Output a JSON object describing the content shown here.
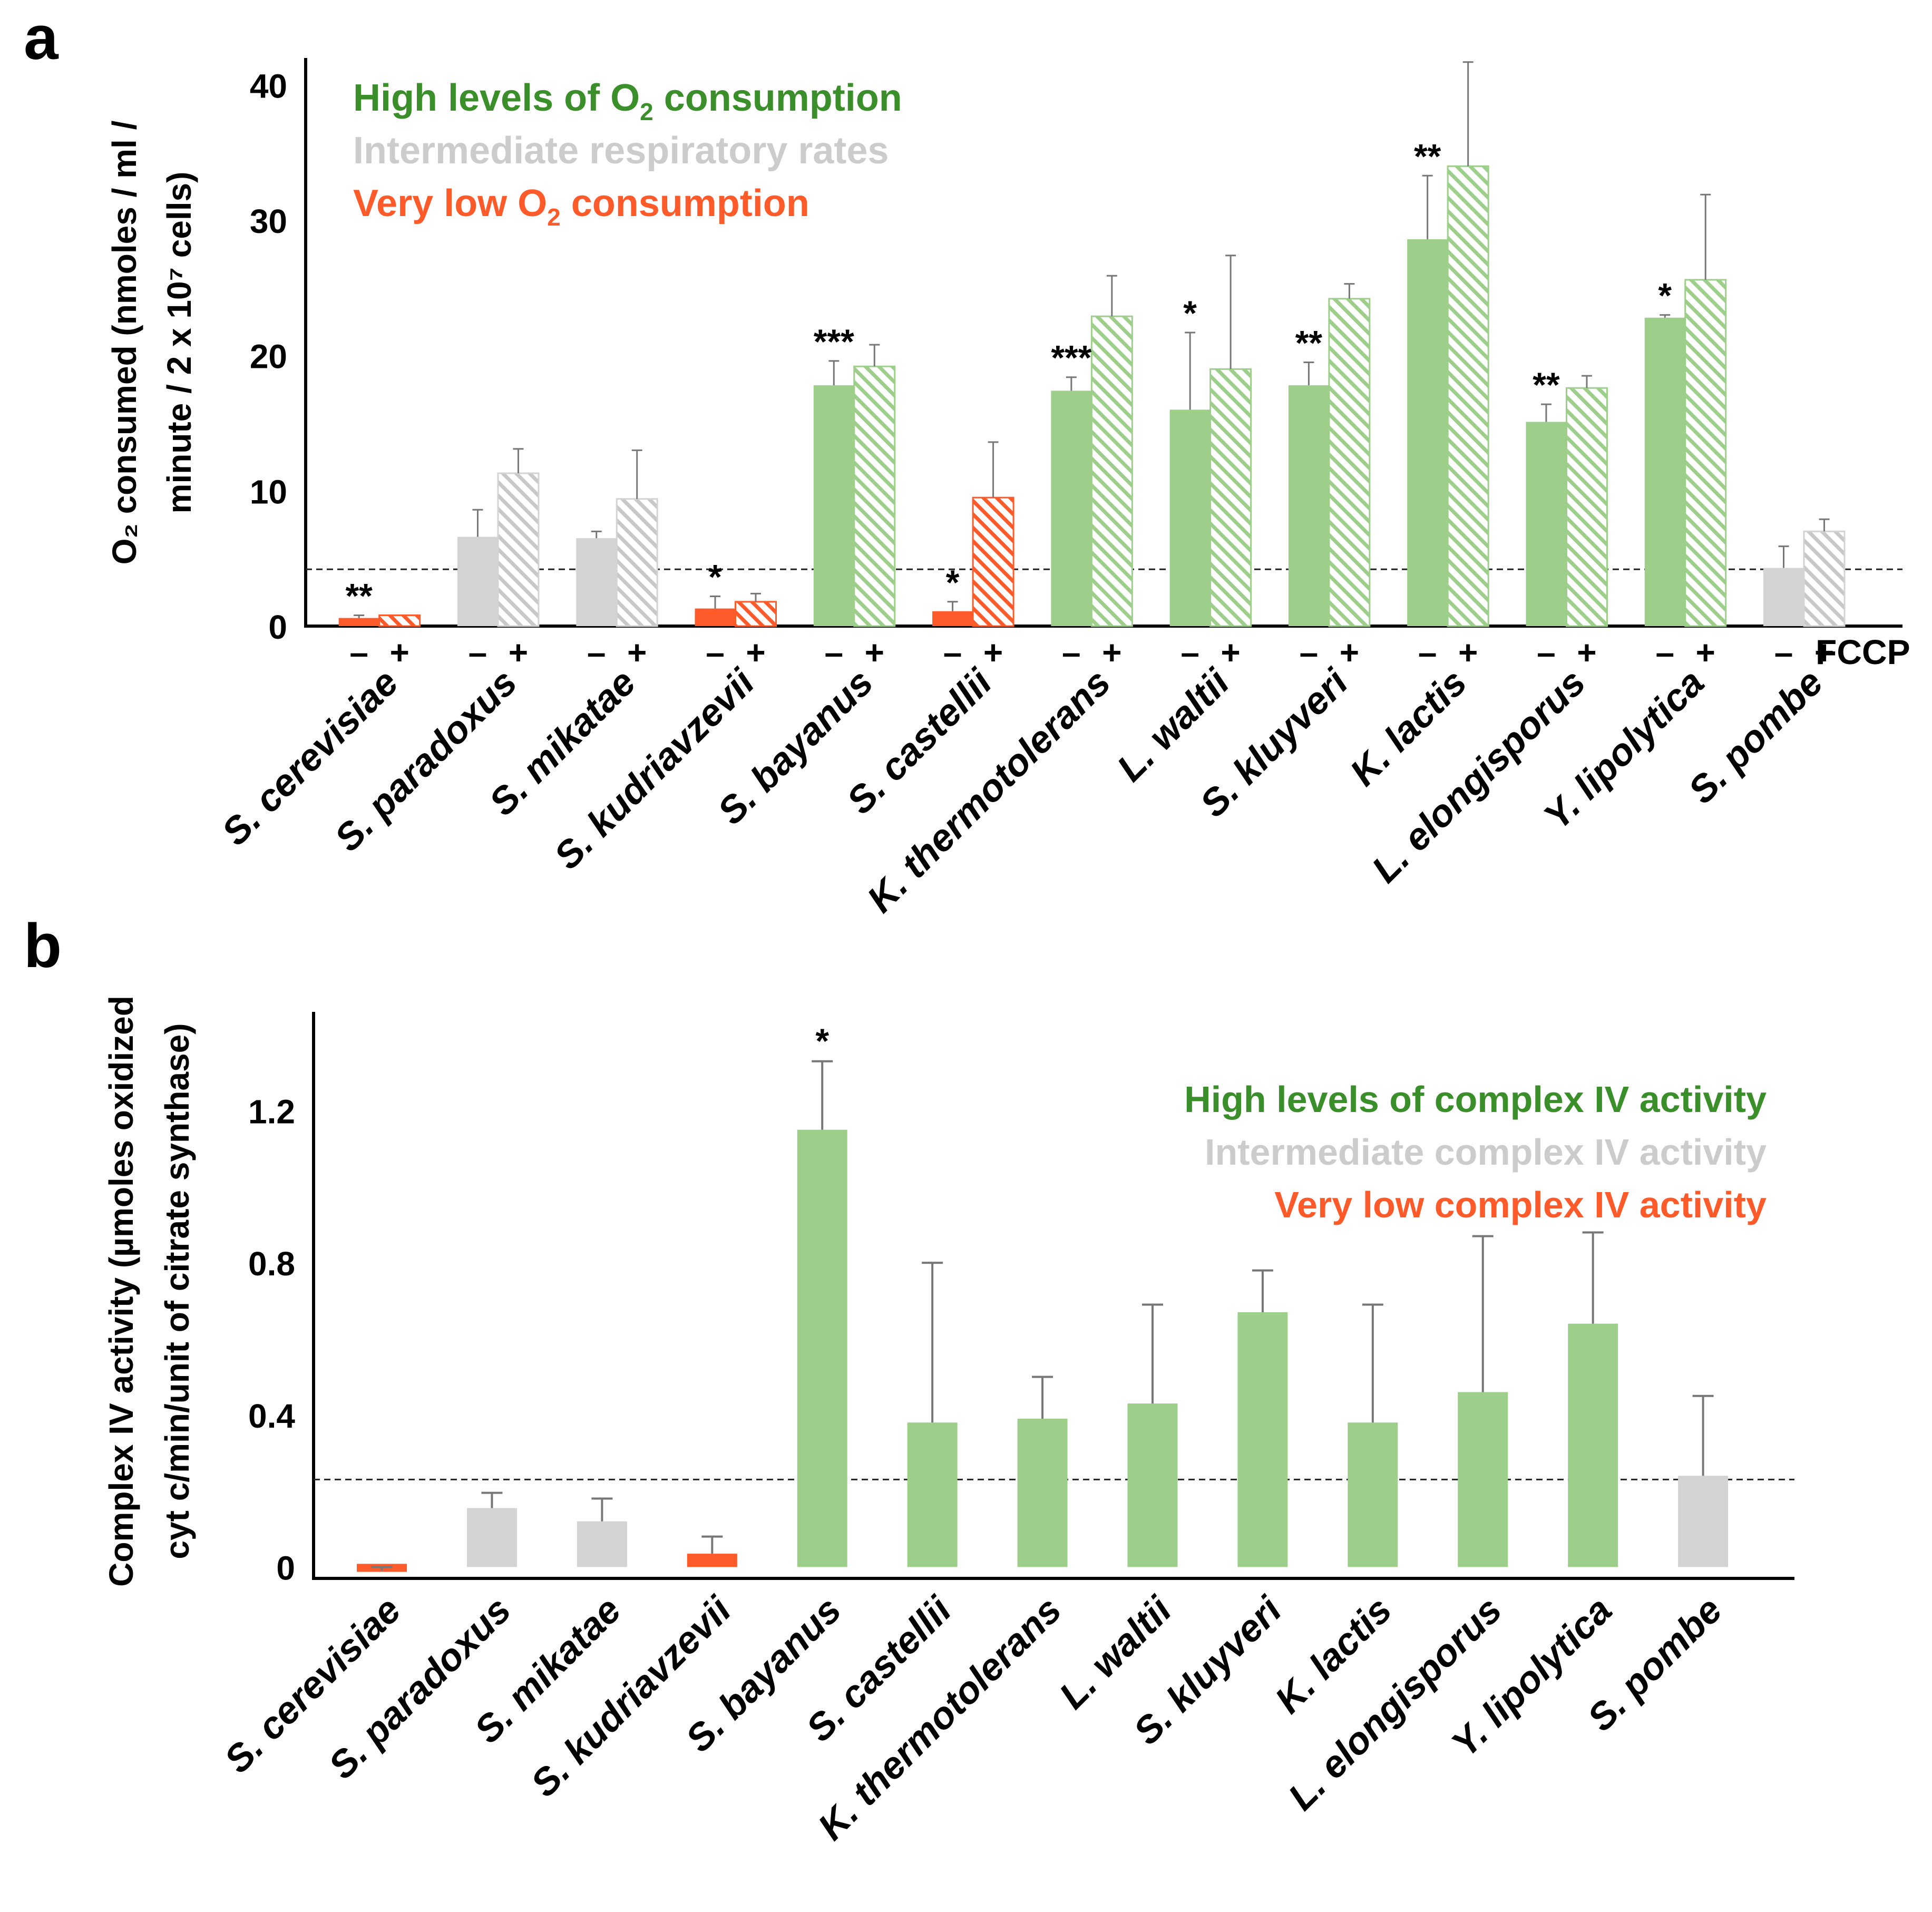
{
  "colors": {
    "high": "#9dcf8b",
    "intermediate": "#d3d3d3",
    "low": "#ff5a2a",
    "legend_high": "#3a8f2a",
    "legend_intermediate": "#cccccc",
    "legend_low": "#ff5a2a",
    "axis": "#000000",
    "errorbar": "#777777"
  },
  "chart_data": [
    {
      "panel_label": "a",
      "type": "bar",
      "title": "",
      "xlabel": "",
      "ylabel_line1": "O₂ consumed (nmoles / ml /",
      "ylabel_line2": "minute / 2 x 10⁷ cells)",
      "ylim": [
        0,
        42
      ],
      "yticks": [
        0,
        10,
        20,
        30,
        40
      ],
      "reference_line": 4.2,
      "treatment_label": "FCCP",
      "minus_sign": "–",
      "plus_sign": "+",
      "categories": [
        "S. cerevisiae",
        "S. paradoxus",
        "S. mikatae",
        "S. kudriavzevii",
        "S. bayanus",
        "S. castellii",
        "K. thermotolerans",
        "L. waltii",
        "S. kluyveri",
        "K. lactis",
        "L. elongisporus",
        "Y. lipolytica",
        "S. pombe"
      ],
      "groups": [
        "low",
        "intermediate",
        "intermediate",
        "low",
        "high",
        "low",
        "high",
        "high",
        "high",
        "high",
        "high",
        "high",
        "intermediate"
      ],
      "series": [
        {
          "name": "– FCCP",
          "pattern": "solid",
          "values": [
            0.6,
            6.6,
            6.5,
            1.3,
            17.8,
            1.1,
            17.4,
            16.0,
            17.8,
            28.6,
            15.1,
            22.8,
            4.3
          ],
          "errors": [
            0.2,
            2.0,
            0.5,
            0.9,
            1.8,
            0.7,
            1.0,
            5.7,
            1.7,
            4.7,
            1.3,
            0.2,
            1.6
          ]
        },
        {
          "name": "+ FCCP",
          "pattern": "hatched",
          "values": [
            0.8,
            11.3,
            9.4,
            1.8,
            19.2,
            9.5,
            22.9,
            19.0,
            24.2,
            34.0,
            17.6,
            25.6,
            7.0
          ],
          "errors": [
            0.0,
            1.8,
            3.6,
            0.6,
            1.6,
            4.1,
            3.0,
            8.4,
            1.1,
            7.7,
            0.9,
            6.3,
            0.9
          ]
        }
      ],
      "significance": [
        "**",
        "",
        "",
        "*",
        "***",
        "*",
        "***",
        "*",
        "**",
        "**",
        "**",
        "*",
        ""
      ],
      "legend": [
        {
          "group": "high",
          "parts": [
            "High levels of O",
            "2",
            " consumption"
          ]
        },
        {
          "group": "intermediate",
          "parts": [
            "Intermediate respiratory rates"
          ]
        },
        {
          "group": "low",
          "parts": [
            "Very low O",
            "2",
            " consumption"
          ]
        }
      ],
      "legend_position": "top-left"
    },
    {
      "panel_label": "b",
      "type": "bar",
      "title": "",
      "xlabel": "",
      "ylabel_line1": "Complex IV activity (µmoles oxidized",
      "ylabel_line2": "cyt c/min/unit of citrate synthase)",
      "ylim": [
        -0.03,
        1.46
      ],
      "yticks": [
        0,
        0.4,
        0.8,
        1.2
      ],
      "ytick_labels": [
        "0",
        "0.4",
        "0.8",
        "1.2"
      ],
      "reference_line": 0.23,
      "categories": [
        "S. cerevisiae",
        "S. paradoxus",
        "S. mikatae",
        "S. kudriavzevii",
        "S. bayanus",
        "S. castellii",
        "K. thermotolerans",
        "L. waltii",
        "S. kluyveri",
        "K. lactis",
        "L. elongisporus",
        "Y. lipolytica",
        "S. pombe"
      ],
      "groups": [
        "low",
        "intermediate",
        "intermediate",
        "low",
        "high",
        "high",
        "high",
        "high",
        "high",
        "high",
        "high",
        "high",
        "intermediate"
      ],
      "values": [
        -0.01,
        0.155,
        0.12,
        0.035,
        1.15,
        0.38,
        0.39,
        0.43,
        0.67,
        0.38,
        0.46,
        0.64,
        0.24
      ],
      "errors": [
        0.01,
        0.04,
        0.06,
        0.045,
        0.18,
        0.42,
        0.11,
        0.26,
        0.11,
        0.31,
        0.41,
        0.24,
        0.21
      ],
      "significance": [
        "",
        "",
        "",
        "",
        "*",
        "",
        "",
        "",
        "",
        "",
        "",
        "",
        ""
      ],
      "legend": [
        {
          "group": "high",
          "parts": [
            "High levels of complex IV activity"
          ]
        },
        {
          "group": "intermediate",
          "parts": [
            "Intermediate complex IV activity"
          ]
        },
        {
          "group": "low",
          "parts": [
            "Very low complex IV activity"
          ]
        }
      ],
      "legend_position": "top-right"
    }
  ]
}
